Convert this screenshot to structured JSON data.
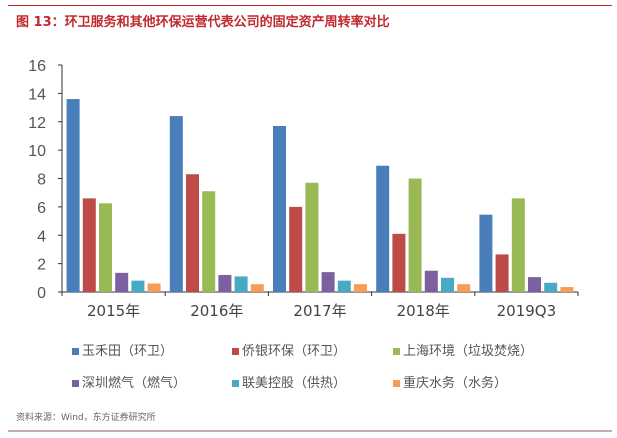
{
  "title": "图 13：环卫服务和其他环保运营代表公司的固定资产周转率对比",
  "source": "资料来源：Wind，东方证券研究所",
  "colors": {
    "title": "#c0282e",
    "rule_top": "#c0282e",
    "rule_bottom": "#c9a9ad"
  },
  "chart_data": {
    "type": "bar",
    "title": "",
    "xlabel": "",
    "ylabel": "",
    "ylim": [
      0,
      16
    ],
    "yticks": [
      0,
      2,
      4,
      6,
      8,
      10,
      12,
      14,
      16
    ],
    "grid": false,
    "legend_placement": "bottom",
    "categories": [
      "2015年",
      "2016年",
      "2017年",
      "2018年",
      "2019Q3"
    ],
    "series": [
      {
        "name": "玉禾田（环卫）",
        "color": "#4a7ebb",
        "values": [
          13.6,
          12.4,
          11.7,
          8.9,
          5.45
        ]
      },
      {
        "name": "侨银环保（环卫）",
        "color": "#be4b48",
        "values": [
          6.6,
          8.3,
          6.0,
          4.1,
          2.65
        ]
      },
      {
        "name": "上海环境（垃圾焚烧）",
        "color": "#98b954",
        "values": [
          6.25,
          7.1,
          7.7,
          8.0,
          6.6
        ]
      },
      {
        "name": "深圳燃气（燃气）",
        "color": "#7d60a0",
        "values": [
          1.35,
          1.2,
          1.4,
          1.5,
          1.05
        ]
      },
      {
        "name": "联美控股（供热）",
        "color": "#46aac5",
        "values": [
          0.8,
          1.1,
          0.8,
          1.0,
          0.65
        ]
      },
      {
        "name": "重庆水务（水务）",
        "color": "#f59d56",
        "values": [
          0.6,
          0.55,
          0.55,
          0.55,
          0.35
        ]
      }
    ]
  }
}
